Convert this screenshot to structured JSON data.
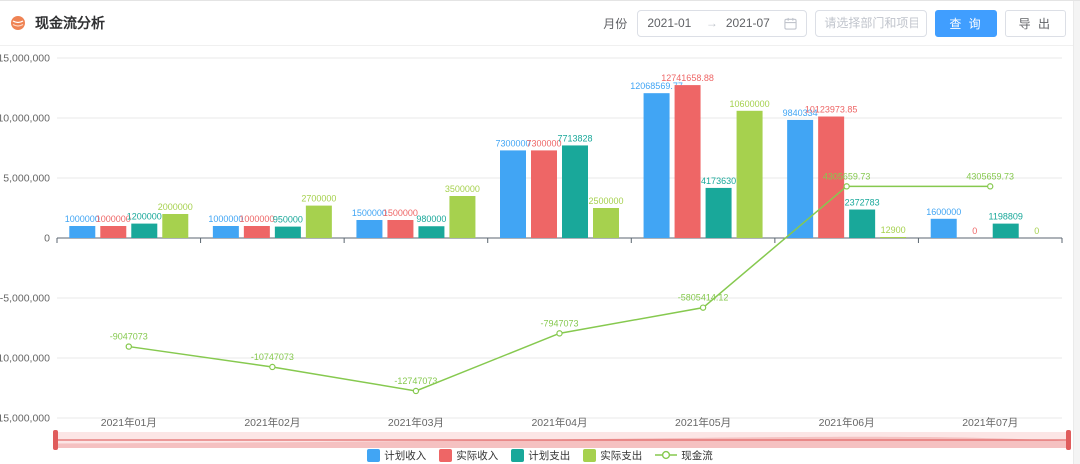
{
  "header": {
    "title": "现金流分析",
    "month_label": "月份",
    "date_start": "2021-01",
    "date_range_separator": "→",
    "date_end": "2021-07",
    "filter_placeholder": "请选择部门和项目",
    "query_button": "查 询",
    "export_button": "导 出"
  },
  "colors": {
    "primary_button": "#409eff",
    "grid_line": "#e8e8e8",
    "axis_line": "#5b6670",
    "tick_text": "#666666",
    "datazoom_bg": "#fce5e5",
    "datazoom_shadow": "#f3b4b4",
    "datazoom_line": "#e05c5c",
    "datazoom_handle": "#e05c5c"
  },
  "chart_data": {
    "type": "bar",
    "title": "",
    "xlabel": "",
    "ylabel": "",
    "categories": [
      "2021年01月",
      "2021年02月",
      "2021年03月",
      "2021年04月",
      "2021年05月",
      "2021年06月",
      "2021年07月"
    ],
    "series": [
      {
        "name": "计划收入",
        "type": "bar",
        "color": "#41a5f4",
        "values": [
          1000000,
          1000000,
          1500000,
          7300000,
          12068569.77,
          9840334,
          1600000
        ]
      },
      {
        "name": "实际收入",
        "type": "bar",
        "color": "#ee6666",
        "values": [
          1000000,
          1000000,
          1500000,
          7300000,
          12741658.88,
          10123973.85,
          0
        ]
      },
      {
        "name": "计划支出",
        "type": "bar",
        "color": "#19a89a",
        "values": [
          1200000,
          950000,
          980000,
          7713828,
          4173630,
          2372783,
          1198809
        ]
      },
      {
        "name": "实际支出",
        "type": "bar",
        "color": "#a6d14e",
        "values": [
          2000000,
          2700000,
          3500000,
          2500000,
          10600000,
          12900,
          0
        ]
      },
      {
        "name": "现金流",
        "type": "line",
        "color": "#86c94f",
        "values": [
          -9047073,
          -10747073,
          -12747073,
          -7947073,
          -5805414.12,
          4305659.73,
          4305659.73
        ]
      }
    ],
    "ylim": [
      -15000000,
      15000000
    ],
    "y_tick_interval": 5000000,
    "y_tick_labels": [
      "15,000,000",
      "10,000,000",
      "5,000,000",
      "0",
      "-5,000,000",
      "-10,000,000",
      "-15,000,000"
    ],
    "grid": true,
    "legend_position": "bottom"
  }
}
